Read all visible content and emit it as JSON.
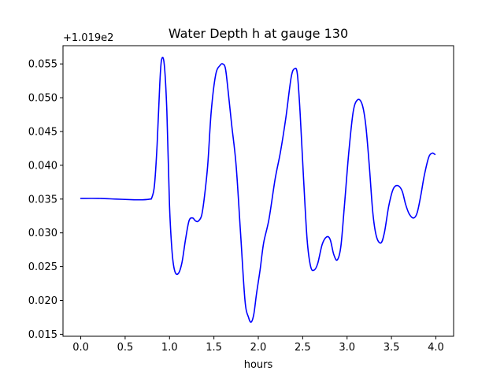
{
  "chart_data": {
    "type": "line",
    "title": "Water Depth h at gauge 130",
    "xlabel": "hours",
    "ylabel": "",
    "offset_text": "+1.019e2",
    "xlim": [
      -0.2,
      4.2
    ],
    "ylim": [
      0.0147,
      0.0577
    ],
    "x_ticks": [
      0.0,
      0.5,
      1.0,
      1.5,
      2.0,
      2.5,
      3.0,
      3.5,
      4.0
    ],
    "x_tick_labels": [
      "0.0",
      "0.5",
      "1.0",
      "1.5",
      "2.0",
      "2.5",
      "3.0",
      "3.5",
      "4.0"
    ],
    "y_ticks": [
      0.015,
      0.02,
      0.025,
      0.03,
      0.035,
      0.04,
      0.045,
      0.05,
      0.055
    ],
    "y_tick_labels": [
      "0.015",
      "0.020",
      "0.025",
      "0.030",
      "0.035",
      "0.040",
      "0.045",
      "0.050",
      "0.055"
    ],
    "grid": false,
    "series": [
      {
        "color": "#0000ff",
        "x": [
          0.0,
          0.2,
          0.4,
          0.6,
          0.7,
          0.78,
          0.8,
          0.83,
          0.86,
          0.89,
          0.91,
          0.94,
          0.97,
          1.0,
          1.03,
          1.06,
          1.1,
          1.14,
          1.18,
          1.22,
          1.26,
          1.29,
          1.32,
          1.36,
          1.39,
          1.43,
          1.47,
          1.52,
          1.57,
          1.6,
          1.63,
          1.66,
          1.7,
          1.75,
          1.8,
          1.85,
          1.89,
          1.92,
          1.95,
          1.98,
          2.02,
          2.06,
          2.12,
          2.19,
          2.25,
          2.31,
          2.37,
          2.41,
          2.44,
          2.47,
          2.51,
          2.55,
          2.59,
          2.63,
          2.67,
          2.72,
          2.77,
          2.81,
          2.85,
          2.89,
          2.93,
          2.97,
          3.02,
          3.07,
          3.12,
          3.17,
          3.21,
          3.25,
          3.29,
          3.33,
          3.38,
          3.42,
          3.47,
          3.52,
          3.57,
          3.62,
          3.66,
          3.7,
          3.75,
          3.79,
          3.83,
          3.87,
          3.92,
          3.96,
          3.99
        ],
        "y": [
          0.0351,
          0.0351,
          0.035,
          0.0349,
          0.0349,
          0.035,
          0.0352,
          0.037,
          0.043,
          0.052,
          0.0556,
          0.055,
          0.048,
          0.034,
          0.027,
          0.0243,
          0.024,
          0.0256,
          0.029,
          0.0318,
          0.0322,
          0.0318,
          0.0317,
          0.0325,
          0.035,
          0.04,
          0.048,
          0.0534,
          0.0548,
          0.055,
          0.0543,
          0.051,
          0.046,
          0.04,
          0.03,
          0.02,
          0.0175,
          0.0168,
          0.018,
          0.021,
          0.0245,
          0.0285,
          0.032,
          0.038,
          0.042,
          0.047,
          0.053,
          0.0543,
          0.0535,
          0.048,
          0.038,
          0.029,
          0.025,
          0.0245,
          0.0255,
          0.0283,
          0.0294,
          0.029,
          0.0268,
          0.026,
          0.028,
          0.034,
          0.042,
          0.048,
          0.0497,
          0.049,
          0.046,
          0.04,
          0.033,
          0.0295,
          0.0285,
          0.03,
          0.034,
          0.0365,
          0.037,
          0.0362,
          0.0342,
          0.0328,
          0.0322,
          0.033,
          0.0355,
          0.0385,
          0.0412,
          0.0418,
          0.0416
        ]
      }
    ]
  }
}
